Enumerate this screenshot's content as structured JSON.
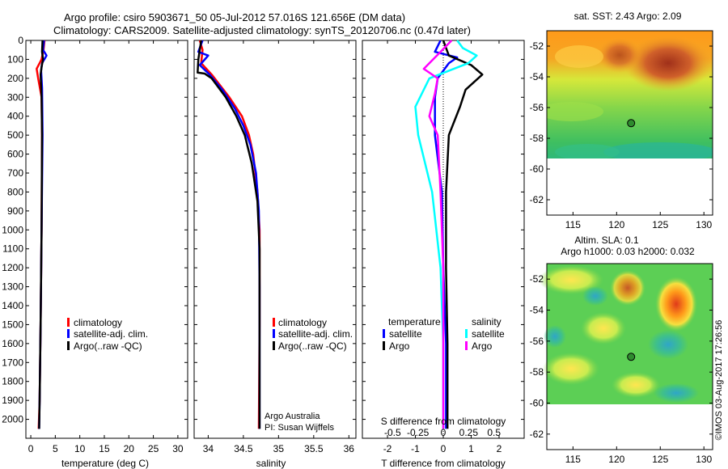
{
  "titles": {
    "line1": "Argo profile: csiro 5903671_50 05-Jul-2012 57.016S 121.656E (DM data)",
    "line2": "Climatology: CARS2009. Satellite-adjusted climatology: synTS_20120706.nc (0.47d later)"
  },
  "colors": {
    "clim": "#ff0000",
    "sat": "#0000ff",
    "argo": "#000000",
    "sal_sat": "#00ffff",
    "sal_argo": "#ff00ff"
  },
  "chart_data": [
    {
      "type": "line",
      "id": "temperature",
      "xlabel": "temperature (deg C)",
      "ylabel": "",
      "xlim": [
        -1,
        32
      ],
      "ylim": [
        2100,
        0
      ],
      "xticks": [
        "0",
        "5",
        "10",
        "15",
        "20",
        "25",
        "30"
      ],
      "xtick_values": [
        0,
        5,
        10,
        15,
        20,
        25,
        30
      ],
      "yticks": [
        "0",
        "100",
        "200",
        "300",
        "400",
        "500",
        "600",
        "700",
        "800",
        "900",
        "1000",
        "1100",
        "1200",
        "1300",
        "1400",
        "1500",
        "1600",
        "1700",
        "1800",
        "1900",
        "2000"
      ],
      "ytick_values": [
        0,
        100,
        200,
        300,
        400,
        500,
        600,
        700,
        800,
        900,
        1000,
        1100,
        1200,
        1300,
        1400,
        1500,
        1600,
        1700,
        1800,
        1900,
        2000
      ],
      "legend": [
        "climatology",
        "satellite-adj. clim.",
        "Argo(..raw -QC)"
      ],
      "series": [
        {
          "name": "climatology",
          "color": "#ff0000",
          "x": [
            2.8,
            2.6,
            2.2,
            1.2,
            1.5,
            2.2,
            2.3,
            2.2,
            2.0,
            1.8,
            1.6
          ],
          "depth": [
            0,
            50,
            100,
            150,
            200,
            300,
            500,
            1000,
            1500,
            1900,
            2050
          ]
        },
        {
          "name": "satellite-adj. clim.",
          "color": "#0000ff",
          "x": [
            2.7,
            2.5,
            3.2,
            2.3,
            2.1,
            2.3,
            2.4,
            2.2,
            2.0,
            1.8,
            1.7
          ],
          "depth": [
            0,
            50,
            80,
            120,
            160,
            250,
            500,
            1000,
            1500,
            1900,
            2050
          ]
        },
        {
          "name": "Argo(..raw -QC)",
          "color": "#000000",
          "x": [
            2.4,
            2.3,
            2.5,
            2.2,
            2.0,
            2.2,
            2.3,
            2.2,
            2.0,
            1.8,
            1.7
          ],
          "depth": [
            0,
            60,
            100,
            140,
            180,
            300,
            500,
            1000,
            1500,
            1900,
            2050
          ]
        }
      ]
    },
    {
      "type": "line",
      "id": "salinity",
      "xlabel": "salinity",
      "xlim": [
        33.8,
        36.1
      ],
      "ylim": [
        2100,
        0
      ],
      "xticks": [
        "34",
        "34.5",
        "35",
        "35.5",
        "36"
      ],
      "xtick_values": [
        34,
        34.5,
        35,
        35.5,
        36
      ],
      "legend": [
        "climatology",
        "satellite-adj. clim.",
        "Argo(..raw -QC)"
      ],
      "annotation": [
        "Argo Australia",
        "PI: Susan Wijffels"
      ],
      "series": [
        {
          "name": "climatology",
          "color": "#ff0000",
          "x": [
            33.88,
            33.92,
            33.9,
            34.05,
            34.3,
            34.48,
            34.58,
            34.64,
            34.7,
            34.73,
            34.73,
            34.72
          ],
          "depth": [
            0,
            50,
            120,
            180,
            300,
            400,
            500,
            600,
            800,
            1000,
            1500,
            2050
          ]
        },
        {
          "name": "satellite-adj. clim.",
          "color": "#0000ff",
          "x": [
            33.92,
            33.86,
            34.0,
            33.88,
            34.02,
            34.2,
            34.38,
            34.5,
            34.6,
            34.68,
            34.72,
            34.73,
            34.73
          ],
          "depth": [
            0,
            60,
            80,
            130,
            180,
            260,
            360,
            450,
            550,
            700,
            900,
            1300,
            2050
          ]
        },
        {
          "name": "Argo(..raw -QC)",
          "color": "#000000",
          "x": [
            33.9,
            33.86,
            33.85,
            33.95,
            34.05,
            34.25,
            34.4,
            34.52,
            34.62,
            34.7,
            34.73,
            34.73
          ],
          "depth": [
            0,
            100,
            170,
            175,
            200,
            300,
            400,
            500,
            650,
            850,
            1100,
            2050
          ]
        }
      ]
    },
    {
      "type": "line",
      "id": "difference",
      "xlabel": "T difference from climatology",
      "xlabel2": "S difference from climatology",
      "xlim": [
        -2.9,
        2.9
      ],
      "ylim": [
        2100,
        0
      ],
      "xticks": [
        "-2",
        "-1",
        "0",
        "1",
        "2"
      ],
      "xtick_values": [
        -2,
        -1,
        0,
        1,
        2
      ],
      "sticks": [
        "-0.5",
        "-0.25",
        "0",
        "0.25",
        "0.5"
      ],
      "stick_values": [
        -0.5,
        -0.25,
        0,
        0.25,
        0.5
      ],
      "legend_left_title": "temperature",
      "legend_right_title": "salinity",
      "legend": [
        "satellite",
        "Argo",
        "satellite",
        "Argo"
      ],
      "series": [
        {
          "name": "temperature satellite",
          "color": "#0000ff",
          "x": [
            -0.1,
            -0.3,
            0.5,
            0.2,
            -0.2,
            -0.3,
            -0.3,
            -0.05,
            0.0,
            0.1,
            0.1
          ],
          "depth": [
            0,
            60,
            90,
            120,
            200,
            300,
            500,
            800,
            1200,
            1600,
            2050
          ]
        },
        {
          "name": "temperature Argo",
          "color": "#000000",
          "x": [
            0.0,
            0.2,
            1.0,
            1.4,
            0.8,
            0.6,
            0.2,
            0.1,
            0.1,
            0.15,
            0.15
          ],
          "depth": [
            0,
            80,
            130,
            180,
            260,
            350,
            500,
            800,
            1200,
            1600,
            2050
          ]
        },
        {
          "name": "salinity satellite",
          "color": "#00ffff",
          "x": [
            0.5,
            0.7,
            1.2,
            0.9,
            -0.5,
            -1.0,
            -0.9,
            -0.4,
            -0.1,
            0.0,
            0.0
          ],
          "depth": [
            0,
            40,
            80,
            120,
            200,
            350,
            500,
            800,
            1200,
            1600,
            2050
          ]
        },
        {
          "name": "salinity Argo",
          "color": "#ff00ff",
          "x": [
            0.3,
            -0.1,
            -0.7,
            -0.2,
            -0.3,
            -0.5,
            -0.2,
            -0.1,
            0.0,
            0.0,
            0.0
          ],
          "depth": [
            0,
            60,
            150,
            200,
            280,
            400,
            500,
            800,
            1200,
            1600,
            2050
          ]
        }
      ]
    },
    {
      "type": "heatmap",
      "id": "sst-map",
      "title": "sat. SST: 2.43 Argo: 2.09",
      "xlim": [
        112,
        131
      ],
      "ylim": [
        -63,
        -51
      ],
      "xticks": [
        "115",
        "120",
        "125",
        "130"
      ],
      "xtick_values": [
        115,
        120,
        125,
        130
      ],
      "yticks": [
        "-52",
        "-54",
        "-56",
        "-58",
        "-60",
        "-62"
      ],
      "ytick_values": [
        -52,
        -54,
        -56,
        -58,
        -60,
        -62
      ],
      "marker": {
        "lon": 121.656,
        "lat": -57.016
      },
      "data_south_limit": -60
    },
    {
      "type": "heatmap",
      "id": "sla-map",
      "title": "Altim. SLA: 0.1",
      "subtitle": "Argo h1000: 0.03 h2000: 0.032",
      "xlim": [
        112,
        131
      ],
      "ylim": [
        -63,
        -51
      ],
      "xticks": [
        "115",
        "120",
        "125",
        "130"
      ],
      "xtick_values": [
        115,
        120,
        125,
        130
      ],
      "yticks": [
        "-52",
        "-54",
        "-56",
        "-58",
        "-60",
        "-62"
      ],
      "ytick_values": [
        -52,
        -54,
        -56,
        -58,
        -60,
        -62
      ],
      "marker": {
        "lon": 121.656,
        "lat": -57.016
      },
      "data_south_limit": -60
    }
  ],
  "watermark": "©IMOS 03-Aug-2017 17:26:56"
}
